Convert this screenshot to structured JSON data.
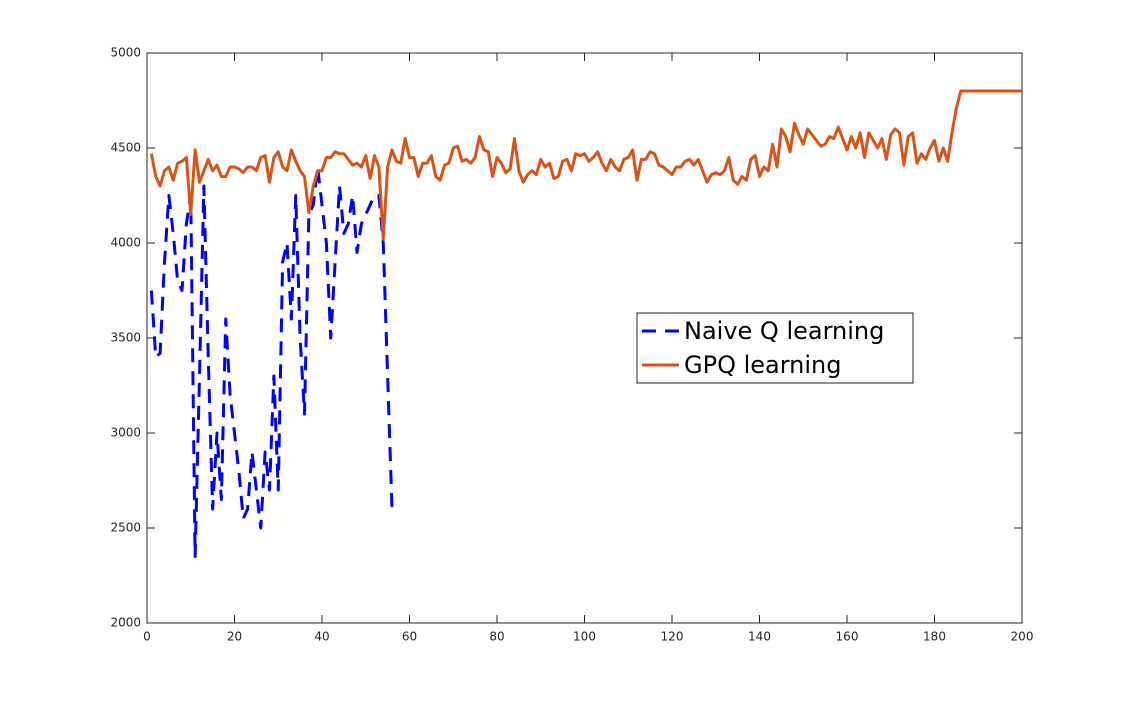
{
  "chart_data": {
    "type": "line",
    "xlim": [
      0,
      200
    ],
    "xticks": [
      0,
      20,
      40,
      60,
      80,
      100,
      120,
      140,
      160,
      180,
      200
    ],
    "ylim": [
      2000,
      5000
    ],
    "yticks": [
      2000,
      2500,
      3000,
      3500,
      4000,
      4500,
      5000
    ],
    "grid": false,
    "legend_position": "right",
    "series": [
      {
        "name": "Naive Q learning",
        "color": "#0000ff",
        "dashed": true,
        "x": [
          1,
          2,
          3,
          4,
          5,
          6,
          7,
          8,
          9,
          10,
          11,
          12,
          13,
          14,
          15,
          16,
          17,
          18,
          19,
          20,
          21,
          22,
          23,
          24,
          25,
          26,
          27,
          28,
          29,
          30,
          31,
          32,
          33,
          34,
          35,
          36,
          37,
          38,
          39,
          40,
          41,
          42,
          43,
          44,
          45,
          46,
          47,
          48,
          49,
          50,
          51,
          52,
          53,
          54,
          55,
          56
        ],
        "values": [
          3750,
          3400,
          3420,
          3900,
          4250,
          4050,
          3800,
          3750,
          4100,
          4250,
          2350,
          3300,
          4300,
          3400,
          2600,
          3000,
          2650,
          3600,
          3200,
          3000,
          2800,
          2550,
          2600,
          2900,
          2700,
          2500,
          2900,
          2700,
          3300,
          2700,
          3900,
          4000,
          3600,
          4250,
          3500,
          3100,
          4150,
          4200,
          4400,
          4200,
          4000,
          3500,
          3900,
          4300,
          4050,
          4100,
          4250,
          3950,
          4100,
          4150,
          4200,
          4250,
          4250,
          4000,
          3300,
          2600
        ]
      },
      {
        "name": "GPQ learning",
        "color": "#d95319",
        "dashed": false,
        "x": [
          1,
          2,
          3,
          4,
          5,
          6,
          7,
          8,
          9,
          10,
          11,
          12,
          13,
          14,
          15,
          16,
          17,
          18,
          19,
          20,
          21,
          22,
          23,
          24,
          25,
          26,
          27,
          28,
          29,
          30,
          31,
          32,
          33,
          34,
          35,
          36,
          37,
          38,
          39,
          40,
          41,
          42,
          43,
          44,
          45,
          46,
          47,
          48,
          49,
          50,
          51,
          52,
          53,
          54,
          55,
          56,
          57,
          58,
          59,
          60,
          61,
          62,
          63,
          64,
          65,
          66,
          67,
          68,
          69,
          70,
          71,
          72,
          73,
          74,
          75,
          76,
          77,
          78,
          79,
          80,
          81,
          82,
          83,
          84,
          85,
          86,
          87,
          88,
          89,
          90,
          91,
          92,
          93,
          94,
          95,
          96,
          97,
          98,
          99,
          100,
          101,
          102,
          103,
          104,
          105,
          106,
          107,
          108,
          109,
          110,
          111,
          112,
          113,
          114,
          115,
          116,
          117,
          118,
          119,
          120,
          121,
          122,
          123,
          124,
          125,
          126,
          127,
          128,
          129,
          130,
          131,
          132,
          133,
          134,
          135,
          136,
          137,
          138,
          139,
          140,
          141,
          142,
          143,
          144,
          145,
          146,
          147,
          148,
          149,
          150,
          151,
          152,
          153,
          154,
          155,
          156,
          157,
          158,
          159,
          160,
          161,
          162,
          163,
          164,
          165,
          166,
          167,
          168,
          169,
          170,
          171,
          172,
          173,
          174,
          175,
          176,
          177,
          178,
          179,
          180,
          181,
          182,
          183,
          184,
          185,
          186,
          187,
          188,
          189,
          190,
          191,
          192,
          193,
          194,
          195,
          196,
          197,
          198,
          199,
          200
        ],
        "values": [
          4470,
          4350,
          4300,
          4380,
          4400,
          4330,
          4420,
          4430,
          4450,
          4150,
          4490,
          4320,
          4380,
          4440,
          4380,
          4410,
          4350,
          4350,
          4400,
          4400,
          4390,
          4370,
          4400,
          4400,
          4380,
          4450,
          4460,
          4320,
          4450,
          4480,
          4400,
          4380,
          4490,
          4430,
          4380,
          4350,
          4160,
          4300,
          4380,
          4380,
          4450,
          4450,
          4480,
          4470,
          4470,
          4440,
          4410,
          4420,
          4400,
          4460,
          4340,
          4460,
          4400,
          4020,
          4400,
          4490,
          4430,
          4420,
          4550,
          4450,
          4450,
          4350,
          4420,
          4420,
          4460,
          4350,
          4330,
          4410,
          4420,
          4500,
          4510,
          4430,
          4440,
          4420,
          4450,
          4560,
          4490,
          4480,
          4350,
          4450,
          4420,
          4370,
          4390,
          4550,
          4380,
          4320,
          4360,
          4380,
          4360,
          4440,
          4400,
          4420,
          4340,
          4350,
          4430,
          4440,
          4380,
          4470,
          4460,
          4470,
          4430,
          4450,
          4480,
          4420,
          4380,
          4440,
          4400,
          4380,
          4440,
          4450,
          4490,
          4330,
          4440,
          4440,
          4480,
          4470,
          4410,
          4400,
          4380,
          4360,
          4400,
          4400,
          4430,
          4440,
          4410,
          4440,
          4380,
          4320,
          4360,
          4370,
          4360,
          4380,
          4450,
          4330,
          4310,
          4350,
          4330,
          4440,
          4460,
          4350,
          4400,
          4380,
          4520,
          4400,
          4600,
          4560,
          4480,
          4630,
          4570,
          4520,
          4600,
          4570,
          4540,
          4510,
          4520,
          4560,
          4550,
          4610,
          4550,
          4490,
          4560,
          4500,
          4580,
          4450,
          4580,
          4540,
          4500,
          4550,
          4440,
          4570,
          4600,
          4580,
          4410,
          4560,
          4580,
          4420,
          4470,
          4440,
          4500,
          4540,
          4430,
          4500,
          4430,
          4580,
          4710,
          4800,
          4800,
          4800,
          4800,
          4800,
          4800,
          4800,
          4800,
          4800,
          4800,
          4800,
          4800,
          4800,
          4800,
          4800
        ]
      }
    ]
  }
}
